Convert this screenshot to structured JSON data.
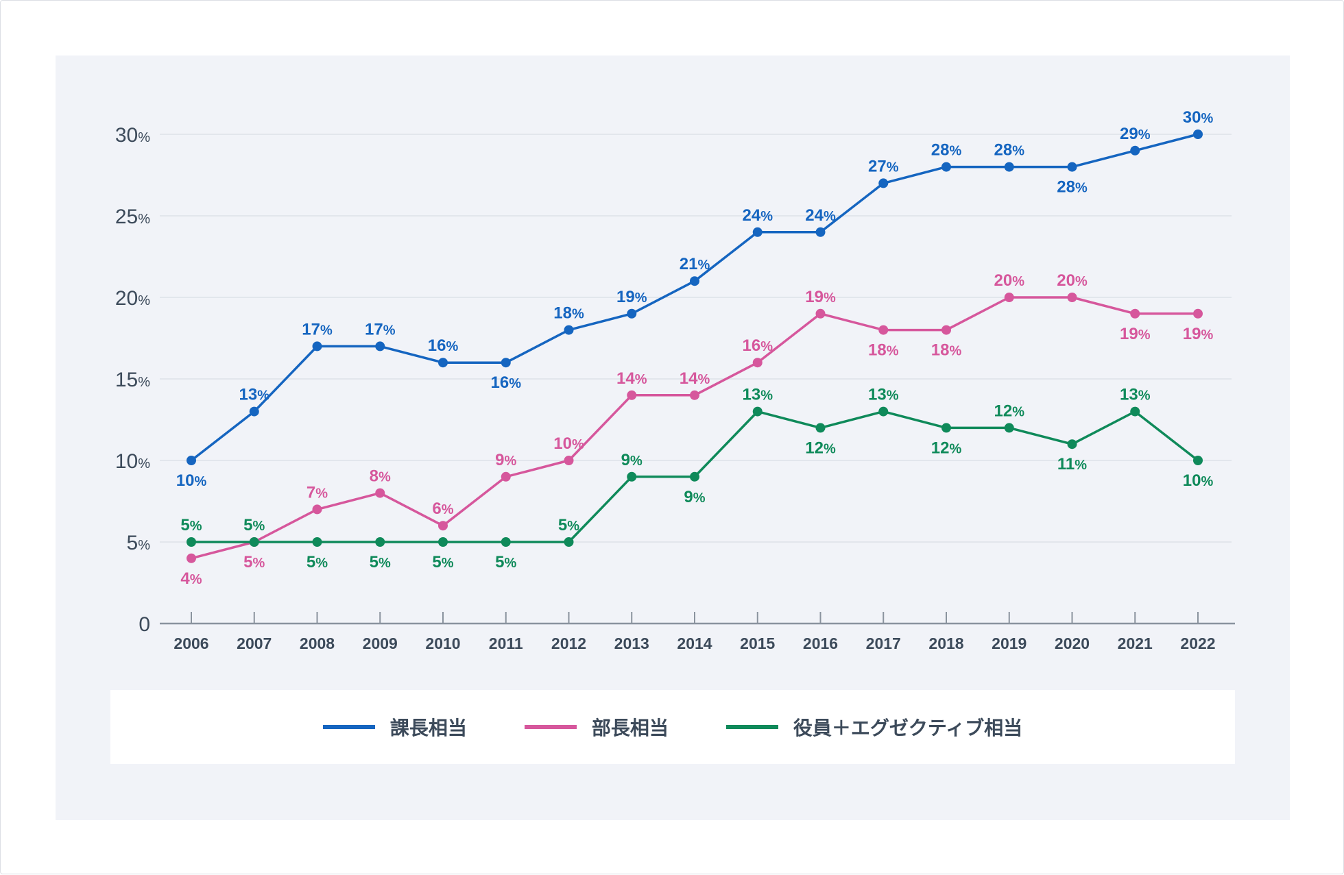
{
  "chart_data": {
    "type": "line",
    "categories": [
      "2006",
      "2007",
      "2008",
      "2009",
      "2010",
      "2011",
      "2012",
      "2013",
      "2014",
      "2015",
      "2016",
      "2017",
      "2018",
      "2019",
      "2020",
      "2021",
      "2022"
    ],
    "ylim": [
      0,
      30
    ],
    "yticks": [
      0,
      5,
      10,
      15,
      20,
      25,
      30
    ],
    "ytick_suffix": "%",
    "value_suffix": "%",
    "grid": true,
    "legend_position": "bottom",
    "series": [
      {
        "name": "課長相当",
        "color": "#1565c0",
        "values": [
          10,
          13,
          17,
          17,
          16,
          16,
          18,
          19,
          21,
          24,
          24,
          27,
          28,
          28,
          28,
          29,
          30
        ],
        "label_pos": [
          "below",
          "above",
          "above",
          "above",
          "above",
          "below",
          "above",
          "above",
          "above",
          "above",
          "above",
          "above",
          "above",
          "above",
          "below",
          "above",
          "above"
        ]
      },
      {
        "name": "部長相当",
        "color": "#d6579c",
        "values": [
          4,
          5,
          7,
          8,
          6,
          9,
          10,
          14,
          14,
          16,
          19,
          18,
          18,
          20,
          20,
          19,
          19
        ],
        "label_pos": [
          "below",
          "below",
          "above",
          "above",
          "above",
          "above",
          "above",
          "above",
          "above",
          "above",
          "above",
          "below",
          "below",
          "above",
          "above",
          "below",
          "below"
        ]
      },
      {
        "name": "役員＋エグゼクティブ相当",
        "color": "#0f8a5a",
        "values": [
          5,
          5,
          5,
          5,
          5,
          5,
          5,
          9,
          9,
          13,
          12,
          13,
          12,
          12,
          11,
          13,
          10
        ],
        "label_pos": [
          "above",
          "above",
          "below",
          "below",
          "below",
          "below",
          "above",
          "above",
          "below",
          "above",
          "below",
          "above",
          "below",
          "above",
          "below",
          "above",
          "below"
        ]
      }
    ]
  }
}
